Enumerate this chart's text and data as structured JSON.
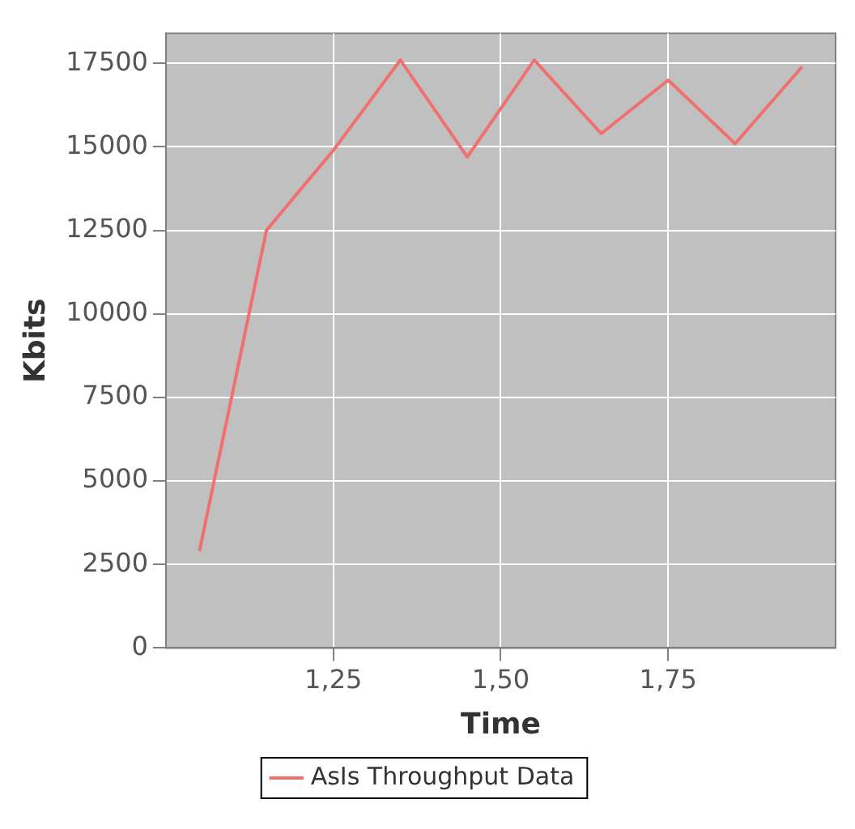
{
  "chart_data": {
    "type": "line",
    "xlabel": "Time",
    "ylabel": "Kbits",
    "x": [
      1.05,
      1.15,
      1.25,
      1.35,
      1.45,
      1.55,
      1.65,
      1.75,
      1.85,
      1.95
    ],
    "series": [
      {
        "name": "AsIs Throughput Data",
        "color": "#f07070",
        "values": [
          2900,
          12500,
          14900,
          17600,
          14700,
          17600,
          15400,
          17000,
          15100,
          17400
        ]
      }
    ],
    "xlim": [
      1,
      2
    ],
    "xticks": [
      {
        "value": 1.25,
        "label": "1,25"
      },
      {
        "value": 1.5,
        "label": "1,50"
      },
      {
        "value": 1.75,
        "label": "1,75"
      }
    ],
    "ylim": [
      0,
      18400
    ],
    "yticks": [
      0,
      2500,
      5000,
      7500,
      10000,
      12500,
      15000,
      17500
    ],
    "grid": true,
    "legend": "bottom",
    "marker": "none",
    "line_style": "solid"
  }
}
